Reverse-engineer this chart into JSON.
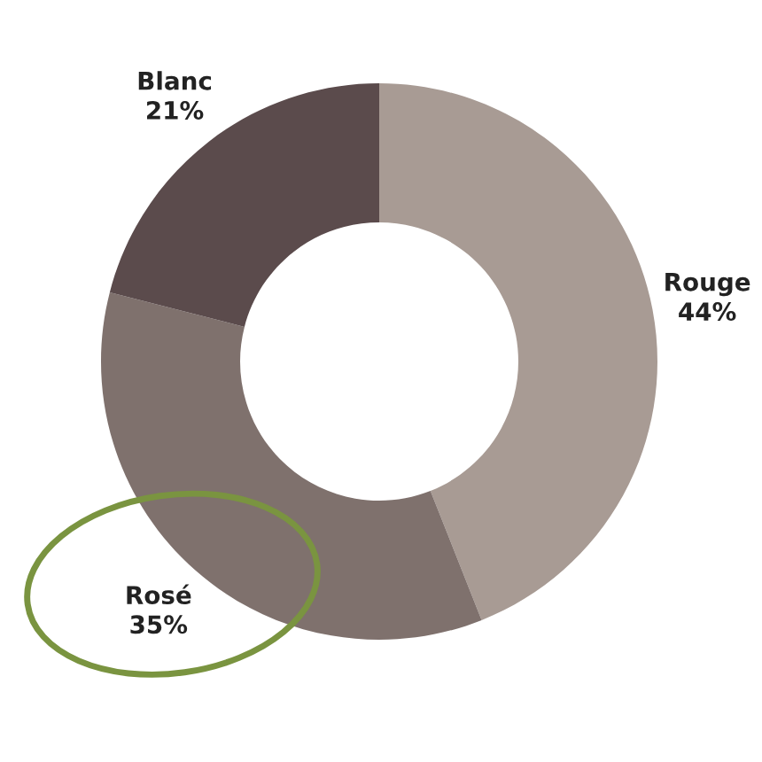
{
  "chart_data": {
    "type": "donut",
    "categories": [
      "Rouge",
      "Rosé",
      "Blanc"
    ],
    "values": [
      44,
      35,
      21
    ],
    "colors": [
      "#a89b94",
      "#7f716d",
      "#5b4b4c"
    ],
    "value_labels": [
      "44%",
      "35%",
      "21%"
    ]
  }
}
